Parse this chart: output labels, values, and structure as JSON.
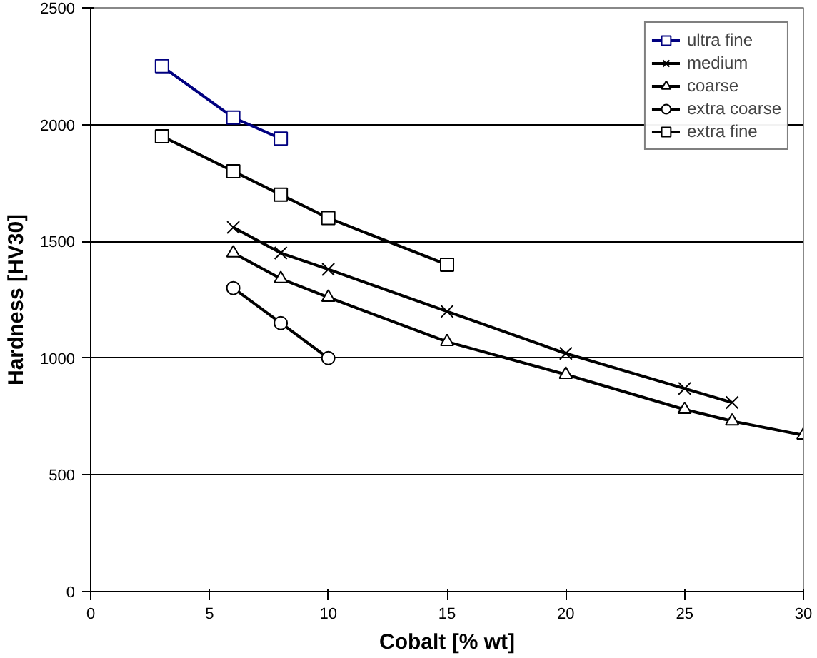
{
  "chart_data": {
    "type": "line",
    "xlabel": "Cobalt [% wt]",
    "ylabel": "Hardness [HV30]",
    "xlim": [
      0,
      30
    ],
    "xticks": [
      0,
      5,
      10,
      15,
      20,
      25,
      30
    ],
    "ylim": [
      0,
      2500
    ],
    "yticks": [
      0,
      500,
      1000,
      1500,
      2000,
      2500
    ],
    "grid": "y",
    "legend": "top right",
    "series": [
      {
        "name": "ultra fine",
        "color": "#000080",
        "marker": "square",
        "x": [
          3,
          6,
          8
        ],
        "values": [
          2250,
          2030,
          1940
        ]
      },
      {
        "name": "medium",
        "color": "#000000",
        "marker": "cross",
        "x": [
          6,
          8,
          10,
          15,
          20,
          25,
          27
        ],
        "values": [
          1560,
          1450,
          1380,
          1200,
          1020,
          870,
          810
        ]
      },
      {
        "name": "coarse",
        "color": "#000000",
        "marker": "triangle",
        "x": [
          6,
          8,
          10,
          15,
          20,
          25,
          27,
          30
        ],
        "values": [
          1450,
          1340,
          1260,
          1070,
          930,
          780,
          730,
          670
        ]
      },
      {
        "name": "extra coarse",
        "color": "#000000",
        "marker": "circle",
        "x": [
          6,
          8,
          10
        ],
        "values": [
          1300,
          1150,
          1000
        ]
      },
      {
        "name": "extra fine",
        "color": "#000000",
        "marker": "square",
        "x": [
          3,
          6,
          8,
          10,
          15
        ],
        "values": [
          1950,
          1800,
          1700,
          1600,
          1400
        ]
      }
    ]
  }
}
